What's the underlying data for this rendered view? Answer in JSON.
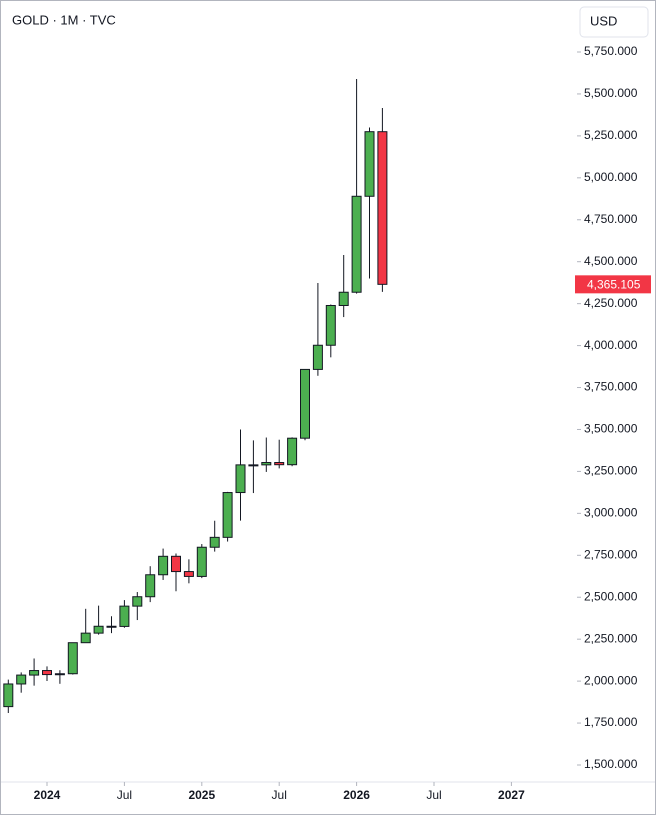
{
  "chart_data": {
    "type": "candlestick",
    "title": "GOLD · 1M · TVC",
    "currency": "USD",
    "x": [
      "2023-10",
      "2023-11",
      "2023-12",
      "2024-01",
      "2024-02",
      "2024-03",
      "2024-04",
      "2024-05",
      "2024-06",
      "2024-07",
      "2024-08",
      "2024-09",
      "2024-10",
      "2024-11",
      "2024-12",
      "2025-01",
      "2025-02",
      "2025-03",
      "2025-04",
      "2025-05",
      "2025-06",
      "2025-07",
      "2025-08",
      "2025-09",
      "2025-10",
      "2025-11",
      "2025-12",
      "2026-01",
      "2026-02",
      "2026-03"
    ],
    "open": [
      1848,
      1983,
      2036,
      2063,
      2039,
      2044,
      2229,
      2286,
      2327,
      2326,
      2447,
      2503,
      2634,
      2744,
      2653,
      2624,
      2798,
      2857,
      3124,
      3289,
      3289,
      3303,
      3290,
      3448,
      3858,
      4002,
      4239,
      4318,
      4890,
      5275
    ],
    "high": [
      2009,
      2052,
      2135,
      2088,
      2065,
      2222,
      2431,
      2450,
      2387,
      2483,
      2531,
      2685,
      2790,
      2761,
      2726,
      2817,
      2956,
      3128,
      3500,
      3435,
      3452,
      3439,
      3453,
      3850,
      4373,
      4245,
      4540,
      5589,
      5300,
      5416
    ],
    "low": [
      1810,
      1931,
      1973,
      2001,
      1984,
      2039,
      2228,
      2277,
      2286,
      2318,
      2364,
      2471,
      2603,
      2536,
      2583,
      2614,
      2772,
      2832,
      2957,
      3121,
      3247,
      3268,
      3281,
      3436,
      3820,
      3930,
      4170,
      4310,
      4400,
      4320
    ],
    "close": [
      1983,
      2036,
      2063,
      2039,
      2044,
      2229,
      2286,
      2327,
      2326,
      2447,
      2503,
      2634,
      2744,
      2653,
      2624,
      2798,
      2857,
      3124,
      3289,
      3289,
      3303,
      3290,
      3448,
      3858,
      4002,
      4239,
      4318,
      4890,
      5275,
      4365.105
    ],
    "last_price_label": "4,365.105",
    "up_color": "#4caf50",
    "down_color": "#f23645",
    "ylim": [
      1380,
      5900
    ],
    "yticks": [
      {
        "value": 1500,
        "label": "1,500.000"
      },
      {
        "value": 1750,
        "label": "1,750.000"
      },
      {
        "value": 2000,
        "label": "2,000.000"
      },
      {
        "value": 2250,
        "label": "2,250.000"
      },
      {
        "value": 2500,
        "label": "2,500.000"
      },
      {
        "value": 2750,
        "label": "2,750.000"
      },
      {
        "value": 3000,
        "label": "3,000.000"
      },
      {
        "value": 3250,
        "label": "3,250.000"
      },
      {
        "value": 3500,
        "label": "3,500.000"
      },
      {
        "value": 3750,
        "label": "3,750.000"
      },
      {
        "value": 4000,
        "label": "4,000.000"
      },
      {
        "value": 4250,
        "label": "4,250.000"
      },
      {
        "value": 4500,
        "label": "4,500.000"
      },
      {
        "value": 4750,
        "label": "4,750.000"
      },
      {
        "value": 5000,
        "label": "5,000.000"
      },
      {
        "value": 5250,
        "label": "5,250.000"
      },
      {
        "value": 5500,
        "label": "5,500.000"
      },
      {
        "value": 5750,
        "label": "5,750.000"
      }
    ],
    "xticks": [
      {
        "value": "2024-01",
        "label": "2024"
      },
      {
        "value": "2024-07",
        "label": "Jul"
      },
      {
        "value": "2025-01",
        "label": "2025"
      },
      {
        "value": "2025-07",
        "label": "Jul"
      },
      {
        "value": "2026-01",
        "label": "2026"
      },
      {
        "value": "2026-07",
        "label": "Jul"
      },
      {
        "value": "2027-01",
        "label": "2027"
      }
    ]
  }
}
